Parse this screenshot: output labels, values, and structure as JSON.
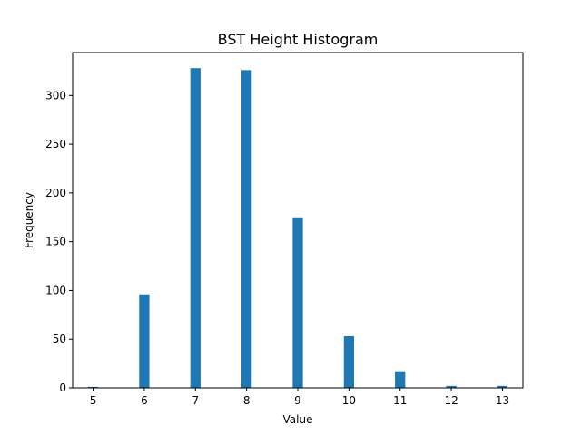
{
  "chart_data": {
    "type": "bar",
    "title": "BST Height Histogram",
    "xlabel": "Value",
    "ylabel": "Frequency",
    "x": [
      5,
      6,
      7,
      8,
      9,
      10,
      11,
      12,
      13
    ],
    "values": [
      1,
      96,
      328,
      326,
      175,
      53,
      17,
      2,
      2
    ],
    "xlim": [
      4.6,
      13.4
    ],
    "ylim": [
      0,
      344
    ],
    "xticks": [
      "5",
      "6",
      "7",
      "8",
      "9",
      "10",
      "11",
      "12",
      "13"
    ],
    "yticks": [
      0,
      50,
      100,
      150,
      200,
      250,
      300
    ],
    "bar_width": 0.2,
    "grid": false,
    "bar_color": "#1f77b4"
  }
}
